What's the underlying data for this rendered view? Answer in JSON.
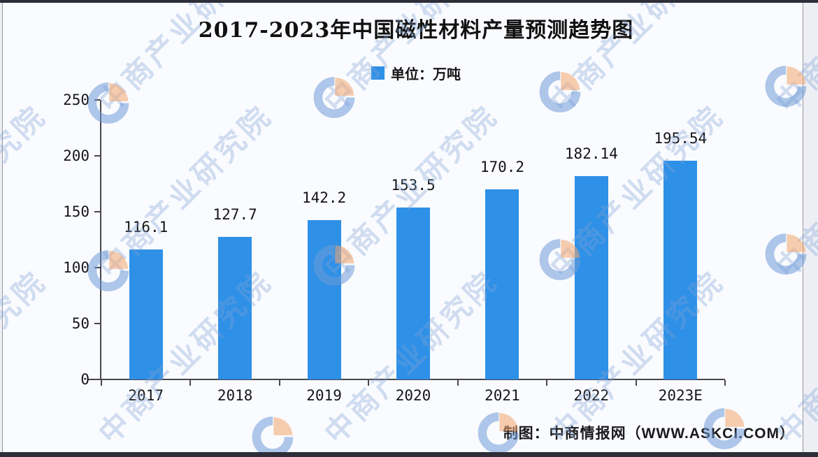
{
  "title": "2017-2023年中国磁性材料产量预测趋势图",
  "legend": {
    "label": "单位：万吨"
  },
  "chart_data": {
    "type": "bar",
    "title": "2017-2023年中国磁性材料产量预测趋势图",
    "legend": "单位：万吨",
    "unit": "万吨",
    "categories": [
      "2017",
      "2018",
      "2019",
      "2020",
      "2021",
      "2022",
      "2023E"
    ],
    "values": [
      116.1,
      127.7,
      142.2,
      153.5,
      170.2,
      182.14,
      195.54
    ],
    "value_labels": [
      "116.1",
      "127.7",
      "142.2",
      "153.5",
      "170.2",
      "182.14",
      "195.54"
    ],
    "ylim": [
      0,
      250
    ],
    "yticks": [
      0,
      50,
      100,
      150,
      200,
      250
    ],
    "bar_color": "#2e90e7",
    "grid": false,
    "legend_position": "top-center"
  },
  "footer": {
    "credit": "制图：中商情报网（WWW.ASKCI.COM）"
  },
  "watermark": {
    "text": "中商产业研究院",
    "logo": "askci-pie-logo",
    "text_color": "rgba(128,163,214,0.35)",
    "logo_blue": "rgba(110,155,215,0.55)",
    "logo_orange": "rgba(242,166,110,0.55)"
  }
}
